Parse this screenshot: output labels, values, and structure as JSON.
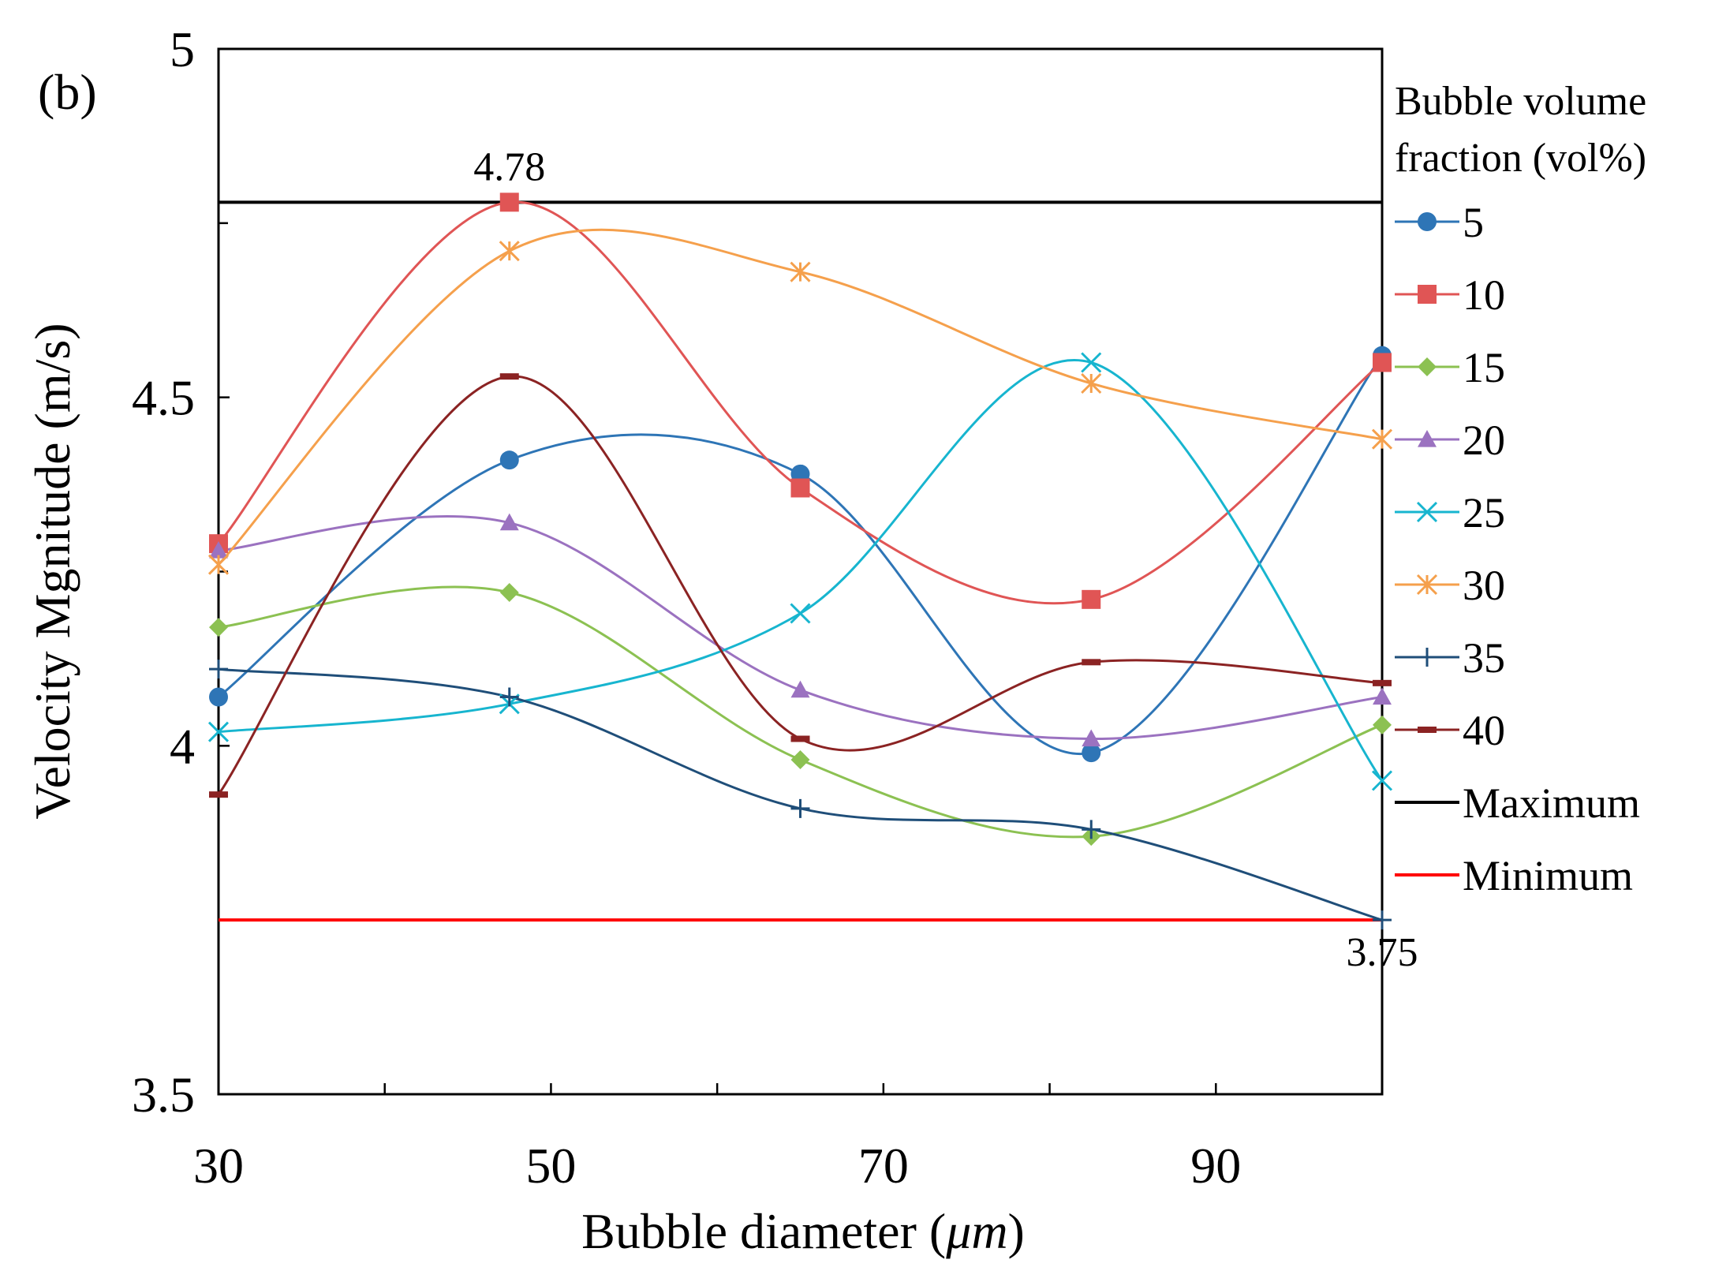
{
  "chart_data": {
    "type": "line",
    "panel_label": "(b)",
    "title": "",
    "xlabel": "Bubble diameter (μm)",
    "xlabel_main": "Bubble diameter (",
    "xlabel_unit": "μm",
    "xlabel_close": ")",
    "ylabel": "Velocity Mgnitude (m/s)",
    "xlim": [
      30,
      100
    ],
    "ylim": [
      3.5,
      5
    ],
    "x_ticks": [
      30,
      50,
      70,
      90
    ],
    "x_tick_labels": [
      "30",
      "50",
      "70",
      "90"
    ],
    "x_minor_ticks": [
      40,
      60,
      80
    ],
    "y_ticks": [
      3.5,
      4,
      4.5,
      5
    ],
    "y_tick_labels": [
      "3.5",
      "4",
      "4.5",
      "5"
    ],
    "y_minor_ticks": [
      3.75,
      4.25,
      4.75
    ],
    "x": [
      30,
      47.5,
      65,
      82.5,
      100
    ],
    "legend": {
      "title_line1": "Bubble volume",
      "title_line2": "fraction (vol%)",
      "placement": "right"
    },
    "series": [
      {
        "name": "5",
        "color": "#2E75B6",
        "marker": "circle",
        "values": [
          4.07,
          4.41,
          4.39,
          3.99,
          4.56
        ]
      },
      {
        "name": "10",
        "color": "#E05555",
        "marker": "square",
        "values": [
          4.29,
          4.78,
          4.37,
          4.21,
          4.55
        ]
      },
      {
        "name": "15",
        "color": "#8CC152",
        "marker": "diamond",
        "values": [
          4.17,
          4.22,
          3.98,
          3.87,
          4.03
        ]
      },
      {
        "name": "20",
        "color": "#9B72C0",
        "marker": "triangle",
        "values": [
          4.28,
          4.32,
          4.08,
          4.01,
          4.07
        ]
      },
      {
        "name": "25",
        "color": "#17B5CF",
        "marker": "x",
        "values": [
          4.02,
          4.06,
          4.19,
          4.55,
          3.95
        ]
      },
      {
        "name": "30",
        "color": "#F5A04C",
        "marker": "star",
        "values": [
          4.26,
          4.71,
          4.68,
          4.52,
          4.44
        ]
      },
      {
        "name": "35",
        "color": "#1F4E79",
        "marker": "plus",
        "values": [
          4.11,
          4.07,
          3.91,
          3.88,
          3.75
        ]
      },
      {
        "name": "40",
        "color": "#8B2323",
        "marker": "dash",
        "values": [
          3.93,
          4.53,
          4.01,
          4.12,
          4.09
        ]
      }
    ],
    "reference_lines": [
      {
        "name": "Maximum",
        "color": "#000000",
        "value": 4.78
      },
      {
        "name": "Minimum",
        "color": "#FF0000",
        "value": 3.75
      }
    ],
    "annotations": [
      {
        "text": "4.78",
        "x": 47.5,
        "y": 4.78,
        "anchor": "above"
      },
      {
        "text": "3.75",
        "x": 100,
        "y": 3.75,
        "anchor": "below"
      }
    ]
  }
}
